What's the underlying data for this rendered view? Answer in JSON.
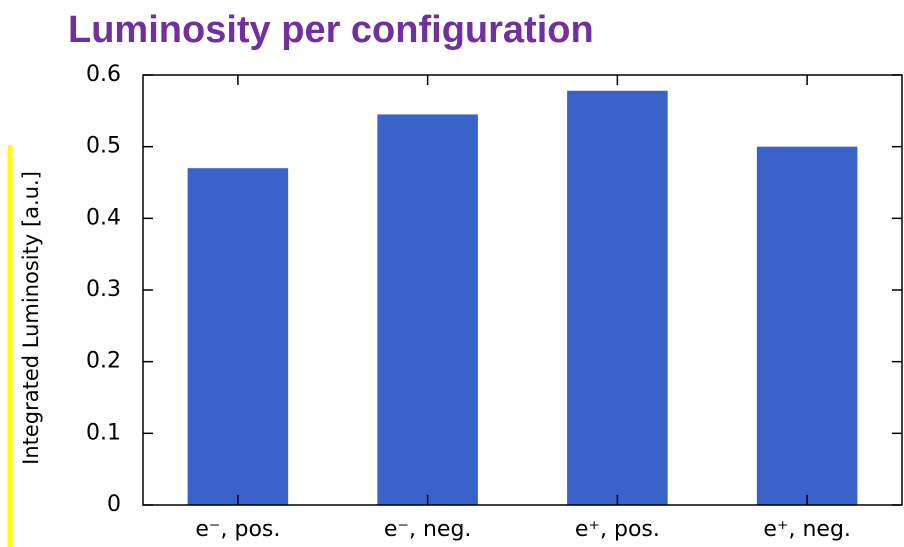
{
  "chart_data": {
    "type": "bar",
    "title": "Luminosity per configuration",
    "y_label": "Integrated Luminosity [a.u.]",
    "categories": [
      "e⁻, pos.",
      "e⁻, neg.",
      "e⁺, pos.",
      "e⁺, neg."
    ],
    "values": [
      0.47,
      0.545,
      0.578,
      0.5
    ],
    "color": "#3a63c9",
    "ylim": [
      0,
      0.6
    ],
    "yticks": [
      0,
      0.1,
      0.2,
      0.3,
      0.4,
      0.5,
      0.6
    ]
  }
}
